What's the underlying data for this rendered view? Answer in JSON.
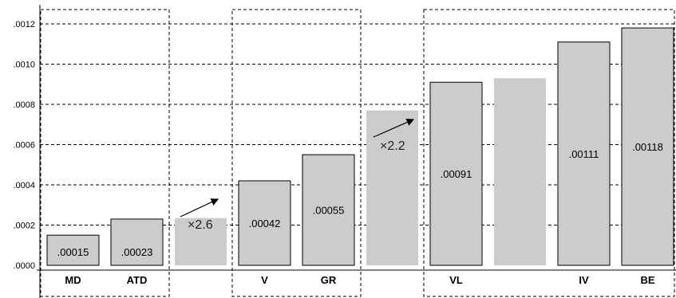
{
  "chart_data": {
    "type": "bar",
    "title": "",
    "xlabel": "",
    "ylabel": "",
    "ylim": [
      0,
      0.0012
    ],
    "yticks": [
      0,
      0.0002,
      0.0004,
      0.0006,
      0.0008,
      0.001,
      0.0012
    ],
    "ytick_labels": [
      ".0000",
      ".0002",
      ".0004",
      ".0006",
      ".0008",
      ".0010",
      ".0012"
    ],
    "grid": "horizontal-dashed",
    "categories": [
      "MD",
      "ATD",
      "",
      "V",
      "GR",
      "",
      "VL",
      "",
      "IV",
      "BE"
    ],
    "values": [
      0.00015,
      0.00023,
      0.000235,
      0.00042,
      0.00055,
      0.00077,
      0.00091,
      0.00093,
      0.00111,
      0.00118
    ],
    "data_labels": [
      ".00015",
      ".00023",
      "",
      ".00042",
      ".00055",
      "",
      ".00091",
      "",
      ".00111",
      ".00118"
    ],
    "bar_style": [
      "outlined",
      "outlined",
      "filled",
      "outlined",
      "outlined",
      "filled",
      "outlined",
      "filled",
      "outlined",
      "outlined"
    ],
    "annotations": [
      {
        "text": "×2.6",
        "near_category_index": 2
      },
      {
        "text": "×2.2",
        "near_category_index": 5
      }
    ],
    "group_boxes": [
      [
        0,
        1
      ],
      [
        3,
        4
      ],
      [
        6,
        9
      ]
    ],
    "colors": {
      "bar_fill": "#cccccc",
      "bar_stroke": "#000000",
      "grid": "#000000",
      "annotation": "#222222"
    }
  }
}
